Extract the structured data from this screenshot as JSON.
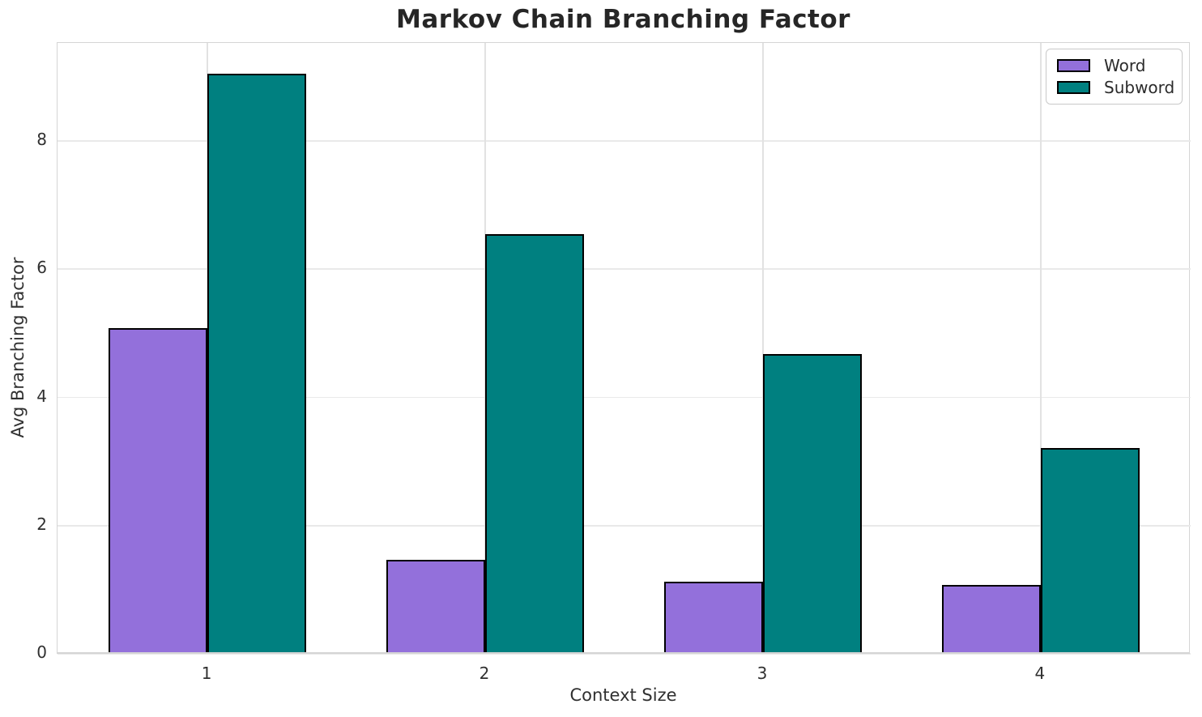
{
  "chart_data": {
    "type": "bar",
    "title": "Markov Chain Branching Factor",
    "xlabel": "Context Size",
    "ylabel": "Avg Branching Factor",
    "categories": [
      "1",
      "2",
      "3",
      "4"
    ],
    "category_positions": [
      1,
      2,
      3,
      4
    ],
    "series": [
      {
        "name": "Word",
        "values": [
          5.08,
          1.47,
          1.13,
          1.07
        ],
        "color": "#9370DB",
        "offset": -0.1775
      },
      {
        "name": "Subword",
        "values": [
          9.05,
          6.55,
          4.68,
          3.21
        ],
        "color": "#008080",
        "offset": 0.1775
      }
    ],
    "bar_width": 0.355,
    "bar_edge_color": "#000000",
    "xlim": [
      0.46,
      4.54
    ],
    "ylim": [
      0,
      9.53
    ],
    "yticks": [
      0,
      2,
      4,
      6,
      8
    ],
    "grid": true,
    "legend": {
      "position": "upper right",
      "entries": [
        "Word",
        "Subword"
      ]
    }
  }
}
